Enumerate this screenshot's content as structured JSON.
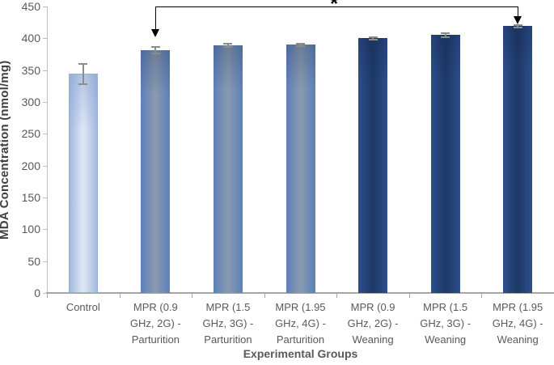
{
  "figure": {
    "background": "#ffffff"
  },
  "chart_data": {
    "type": "bar",
    "title": "",
    "xlabel": "Experimental Groups",
    "ylabel": "MDA Concentration (nmol/mg)",
    "ylim": [
      0,
      450
    ],
    "yticks": [
      0,
      50,
      100,
      150,
      200,
      250,
      300,
      350,
      400,
      450
    ],
    "grid": false,
    "legend": "none",
    "categories": [
      "Control",
      "MPR (0.9 GHz, 2G) - Parturition",
      "MPR (1.5 GHz, 3G) - Parturition",
      "MPR (1.95 GHz, 4G) - Parturition",
      "MPR (0.9 GHz, 2G) - Weaning",
      "MPR (1.5 GHz, 3G) - Weaning",
      "MPR (1.95 GHz, 4G) - Weaning"
    ],
    "values": [
      344,
      381,
      389,
      390,
      400,
      405,
      419
    ],
    "errors": [
      16,
      5,
      3,
      2,
      2,
      3,
      2
    ],
    "bar_groups": [
      "control",
      "parturition",
      "parturition",
      "parturition",
      "weaning",
      "weaning",
      "weaning"
    ],
    "group_colors": {
      "control": {
        "edge": "#a3b9e0",
        "mid": "#dce5f4"
      },
      "parturition": {
        "edge": "#5d80bb",
        "mid": "#8798b0"
      },
      "weaning": {
        "edge": "#2e4e8d",
        "mid": "#1f3a69"
      }
    },
    "error_bar_color": "#8c8c8c",
    "axis_color": "#a6a6a6",
    "tick_label_color": "#595959",
    "axis_title_color": "#404040",
    "significance": {
      "label": "*",
      "from_category": "MPR (0.9 GHz, 2G) - Parturition",
      "to_category": "MPR (1.95 GHz, 4G) - Weaning",
      "from_index": 1,
      "to_index": 6,
      "color": "#000000"
    }
  }
}
